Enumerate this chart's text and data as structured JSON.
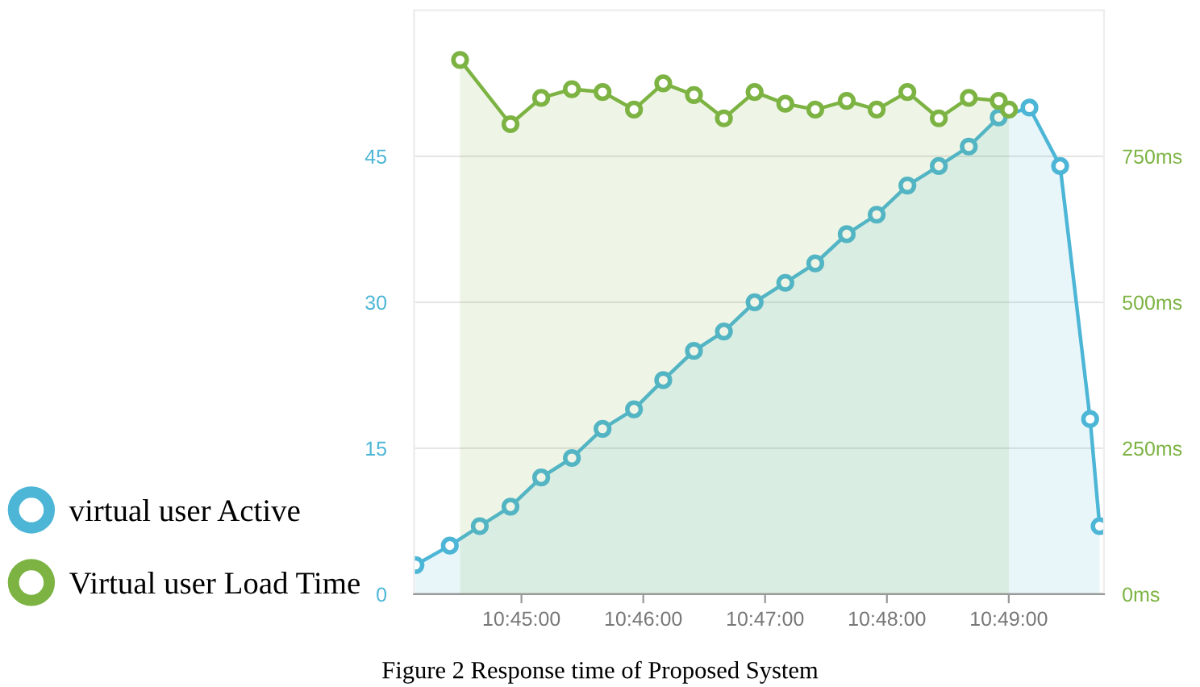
{
  "chart_data": {
    "type": "area",
    "series": [
      {
        "name": "virtual user Active",
        "color": "#4db6d6",
        "axis": "y",
        "x": [
          10.7355,
          10.7402,
          10.7443,
          10.7485,
          10.7527,
          10.7569,
          10.7611,
          10.7654,
          10.7694,
          10.7736,
          10.7777,
          10.7819,
          10.7861,
          10.7902,
          10.7945,
          10.7986,
          10.8028,
          10.8071,
          10.8112,
          10.8153,
          10.8195,
          10.8237,
          10.8278,
          10.8291
        ],
        "values": [
          3,
          5,
          7,
          9,
          12,
          14,
          17,
          19,
          22,
          25,
          27,
          30,
          32,
          34,
          37,
          39,
          42,
          44,
          46,
          49,
          50,
          44,
          18,
          7
        ]
      },
      {
        "name": "Virtual user Load Time",
        "color": "#7cb342",
        "axis": "y2",
        "x": [
          10.7416,
          10.7485,
          10.7527,
          10.7569,
          10.7611,
          10.7654,
          10.7694,
          10.7736,
          10.7777,
          10.7819,
          10.7861,
          10.7902,
          10.7945,
          10.7986,
          10.8028,
          10.8071,
          10.8112,
          10.8153,
          10.8167
        ],
        "values": [
          915,
          805,
          850,
          865,
          860,
          830,
          875,
          855,
          815,
          860,
          840,
          830,
          845,
          830,
          860,
          815,
          850,
          845,
          830
        ]
      }
    ],
    "xlim": [
      10.7353,
      10.8297
    ],
    "xticks": [
      {
        "value": 10.75,
        "label": "10:45:00"
      },
      {
        "value": 10.766667,
        "label": "10:46:00"
      },
      {
        "value": 10.783333,
        "label": "10:47:00"
      },
      {
        "value": 10.8,
        "label": "10:48:00"
      },
      {
        "value": 10.816667,
        "label": "10:49:00"
      }
    ],
    "ylim": [
      0,
      60
    ],
    "yticks": [
      0,
      15,
      30,
      45
    ],
    "y2lim": [
      0,
      1000
    ],
    "y2ticks": [
      {
        "value": 0,
        "label": "0ms"
      },
      {
        "value": 250,
        "label": "250ms"
      },
      {
        "value": 500,
        "label": "500ms"
      },
      {
        "value": 750,
        "label": "750ms"
      }
    ],
    "grid": "y",
    "legend": "left",
    "marker": "circle",
    "line_style": "solid",
    "annotations": [
      "Figure 2 Response time of Proposed System"
    ]
  }
}
